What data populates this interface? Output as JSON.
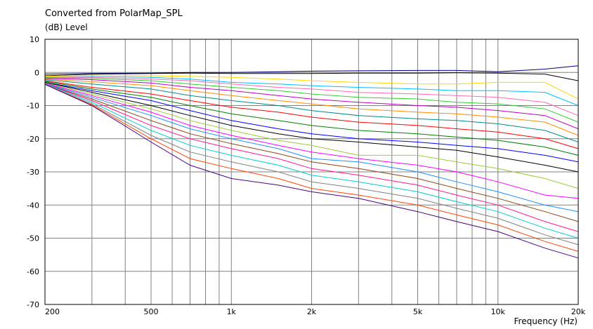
{
  "chart_data": {
    "type": "line",
    "title": "Converted from PolarMap_SPL",
    "ylabel": "(dB)  Level",
    "xlabel": "Frequency  (Hz)",
    "x_scale": "log",
    "xlim": [
      200,
      20000
    ],
    "ylim": [
      -70,
      10
    ],
    "grid": true,
    "legend": "none",
    "x_ticks": [
      {
        "v": 200,
        "label": "200"
      },
      {
        "v": 500,
        "label": "500"
      },
      {
        "v": 1000,
        "label": "1k"
      },
      {
        "v": 2000,
        "label": "2k"
      },
      {
        "v": 5000,
        "label": "5k"
      },
      {
        "v": 10000,
        "label": "10k"
      },
      {
        "v": 20000,
        "label": "20k"
      }
    ],
    "y_ticks": [
      10,
      0,
      -10,
      -20,
      -30,
      -40,
      -50,
      -60,
      -70
    ],
    "x": [
      200,
      300,
      500,
      700,
      1000,
      1500,
      2000,
      3000,
      5000,
      7000,
      10000,
      15000,
      20000
    ],
    "series": [
      {
        "color": "#000080",
        "values": [
          -0.5,
          -0.3,
          -0.2,
          0.0,
          0.0,
          0.2,
          0.4,
          0.5,
          0.6,
          0.6,
          0.2,
          1.0,
          2.0
        ]
      },
      {
        "color": "#000000",
        "values": [
          -1.0,
          -0.5,
          -0.3,
          -0.2,
          -0.3,
          -0.3,
          -0.3,
          -0.2,
          -0.2,
          -0.1,
          -0.2,
          -0.5,
          -2.5
        ]
      },
      {
        "color": "#ffd700",
        "values": [
          -1.2,
          -0.8,
          -1.0,
          -1.2,
          -1.5,
          -2.0,
          -2.5,
          -3.0,
          -3.5,
          -3.5,
          -3.0,
          -3.0,
          -8.0
        ]
      },
      {
        "color": "#00bfff",
        "values": [
          -1.5,
          -1.2,
          -1.5,
          -2.0,
          -3.0,
          -3.5,
          -4.0,
          -4.5,
          -5.0,
          -5.5,
          -5.5,
          -6.0,
          -10.0
        ]
      },
      {
        "color": "#ff69b4",
        "values": [
          -1.5,
          -1.5,
          -2.0,
          -2.5,
          -3.5,
          -4.5,
          -5.0,
          -6.0,
          -6.5,
          -7.0,
          -7.5,
          -9.0,
          -13.0
        ]
      },
      {
        "color": "#32cd32",
        "values": [
          -1.6,
          -1.8,
          -2.5,
          -3.5,
          -4.5,
          -5.5,
          -6.5,
          -7.5,
          -8.0,
          -9.0,
          -9.5,
          -11.0,
          -15.0
        ]
      },
      {
        "color": "#c000c0",
        "values": [
          -1.8,
          -2.2,
          -3.2,
          -4.5,
          -5.5,
          -7.0,
          -8.0,
          -9.0,
          -10.0,
          -10.5,
          -11.5,
          -13.0,
          -17.0
        ]
      },
      {
        "color": "#ff8c00",
        "values": [
          -2.0,
          -2.8,
          -4.0,
          -5.5,
          -7.0,
          -8.5,
          -9.5,
          -11.0,
          -12.0,
          -12.5,
          -13.5,
          -15.0,
          -19.0
        ]
      },
      {
        "color": "#008b8b",
        "values": [
          -2.2,
          -3.5,
          -5.0,
          -7.0,
          -8.5,
          -10.0,
          -11.5,
          -13.0,
          -14.0,
          -14.5,
          -15.5,
          -17.5,
          -21.0
        ]
      },
      {
        "color": "#ff0000",
        "values": [
          -2.5,
          -4.5,
          -6.5,
          -8.5,
          -10.5,
          -12.0,
          -13.5,
          -15.0,
          -16.0,
          -17.0,
          -18.0,
          -20.0,
          -23.0
        ]
      },
      {
        "color": "#008000",
        "values": [
          -2.7,
          -5.0,
          -7.5,
          -10.0,
          -12.5,
          -14.5,
          -16.0,
          -17.5,
          -18.5,
          -19.5,
          -20.5,
          -22.5,
          -25.0
        ]
      },
      {
        "color": "#0000ff",
        "values": [
          -3.0,
          -5.5,
          -8.5,
          -11.5,
          -14.5,
          -17.0,
          -18.5,
          -20.0,
          -21.0,
          -22.0,
          -23.0,
          -25.0,
          -27.0
        ]
      },
      {
        "color": "#000000",
        "values": [
          -3.0,
          -6.0,
          -10.0,
          -13.0,
          -16.0,
          -18.5,
          -20.0,
          -21.0,
          -22.5,
          -23.5,
          -25.5,
          -28.0,
          -30.0
        ]
      },
      {
        "color": "#9acd32",
        "values": [
          -3.2,
          -6.5,
          -11.0,
          -14.5,
          -17.5,
          -20.5,
          -22.0,
          -25.0,
          -25.0,
          -27.0,
          -29.0,
          -32.0,
          -35.0
        ]
      },
      {
        "color": "#ff00ff",
        "values": [
          -3.3,
          -7.0,
          -12.0,
          -16.0,
          -19.0,
          -22.0,
          -24.0,
          -26.0,
          -28.0,
          -30.0,
          -33.0,
          -37.0,
          -38.0
        ]
      },
      {
        "color": "#1e90ff",
        "values": [
          -3.4,
          -7.5,
          -13.0,
          -17.0,
          -20.0,
          -23.0,
          -26.0,
          -27.0,
          -30.0,
          -33.0,
          -36.0,
          -40.0,
          -42.0
        ]
      },
      {
        "color": "#8b4513",
        "values": [
          -3.5,
          -8.0,
          -14.5,
          -18.5,
          -21.5,
          -24.5,
          -27.0,
          -29.0,
          -32.0,
          -35.0,
          -38.0,
          -42.0,
          -45.0
        ]
      },
      {
        "color": "#ff1493",
        "values": [
          -3.5,
          -8.5,
          -16.0,
          -20.0,
          -23.0,
          -26.0,
          -29.0,
          -31.0,
          -34.0,
          -37.0,
          -40.0,
          -45.0,
          -48.0
        ]
      },
      {
        "color": "#00ced1",
        "values": [
          -3.5,
          -9.0,
          -17.5,
          -22.0,
          -25.0,
          -28.0,
          -31.0,
          -33.0,
          -36.0,
          -39.0,
          -42.0,
          -47.0,
          -50.0
        ]
      },
      {
        "color": "#808080",
        "values": [
          -3.6,
          -9.5,
          -19.0,
          -24.0,
          -27.0,
          -30.0,
          -33.0,
          -35.0,
          -38.0,
          -41.0,
          -44.0,
          -49.0,
          -52.0
        ]
      },
      {
        "color": "#ff4500",
        "values": [
          -3.6,
          -9.8,
          -20.0,
          -26.0,
          -29.0,
          -32.0,
          -35.0,
          -37.0,
          -40.0,
          -43.0,
          -46.0,
          -51.0,
          -54.0
        ]
      },
      {
        "color": "#4b0082",
        "values": [
          -3.6,
          -10.0,
          -21.0,
          -28.0,
          -32.0,
          -34.0,
          -36.0,
          -38.0,
          -42.0,
          -45.0,
          -48.0,
          -53.0,
          -56.0
        ]
      }
    ]
  }
}
